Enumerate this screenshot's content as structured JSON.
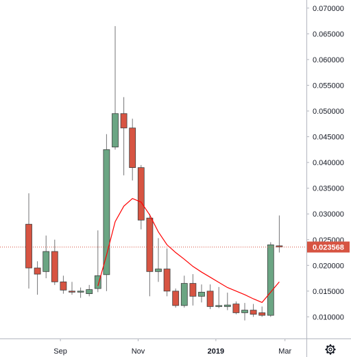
{
  "colors": {
    "up": "#6ba583",
    "down": "#d75442",
    "wick": "#737375",
    "ma_line": "#ff0000",
    "price_line": "#d75442",
    "axis": "#b2b5be",
    "price_label_bg": "#d75442"
  },
  "icons": {
    "settings": "gear-icon"
  },
  "chart_data": {
    "type": "candlestick",
    "title": "",
    "xlabel": "",
    "ylabel": "",
    "ylim": [
      0.0025,
      0.0725
    ],
    "y_ticks": [
      "0.010000",
      "0.015000",
      "0.020000",
      "0.025000",
      "0.030000",
      "0.035000",
      "0.040000",
      "0.045000",
      "0.050000",
      "0.055000",
      "0.060000",
      "0.065000",
      "0.070000"
    ],
    "x_ticks": [
      {
        "label": "Sep",
        "week": 4,
        "bold": false
      },
      {
        "label": "Nov",
        "week": 13,
        "bold": false
      },
      {
        "label": "2019",
        "week": 22,
        "bold": true
      },
      {
        "label": "Mar",
        "week": 30,
        "bold": false
      }
    ],
    "last_price": "0.023568",
    "last_price_value": 0.023568,
    "candles": [
      {
        "week": 0,
        "open": 0.028,
        "high": 0.034,
        "low": 0.0155,
        "close": 0.0195
      },
      {
        "week": 1,
        "open": 0.0195,
        "high": 0.0208,
        "low": 0.0143,
        "close": 0.0183
      },
      {
        "week": 2,
        "open": 0.0188,
        "high": 0.0258,
        "low": 0.0175,
        "close": 0.0227
      },
      {
        "week": 3,
        "open": 0.0227,
        "high": 0.025,
        "low": 0.0162,
        "close": 0.0168
      },
      {
        "week": 4,
        "open": 0.0168,
        "high": 0.018,
        "low": 0.0145,
        "close": 0.0152
      },
      {
        "week": 5,
        "open": 0.015,
        "high": 0.0168,
        "low": 0.0143,
        "close": 0.0148
      },
      {
        "week": 6,
        "open": 0.0148,
        "high": 0.0157,
        "low": 0.0137,
        "close": 0.015
      },
      {
        "week": 7,
        "open": 0.0145,
        "high": 0.0162,
        "low": 0.014,
        "close": 0.0153
      },
      {
        "week": 8,
        "open": 0.0155,
        "high": 0.0268,
        "low": 0.0148,
        "close": 0.018
      },
      {
        "week": 9,
        "open": 0.0182,
        "high": 0.0455,
        "low": 0.015,
        "close": 0.0425
      },
      {
        "week": 10,
        "open": 0.043,
        "high": 0.0665,
        "low": 0.0425,
        "close": 0.0495
      },
      {
        "week": 11,
        "open": 0.0495,
        "high": 0.0527,
        "low": 0.0375,
        "close": 0.0467
      },
      {
        "week": 12,
        "open": 0.0467,
        "high": 0.0485,
        "low": 0.0365,
        "close": 0.039
      },
      {
        "week": 13,
        "open": 0.039,
        "high": 0.0395,
        "low": 0.027,
        "close": 0.0288
      },
      {
        "week": 14,
        "open": 0.0292,
        "high": 0.03,
        "low": 0.014,
        "close": 0.0188
      },
      {
        "week": 15,
        "open": 0.0188,
        "high": 0.0253,
        "low": 0.0168,
        "close": 0.0193
      },
      {
        "week": 16,
        "open": 0.0193,
        "high": 0.0233,
        "low": 0.014,
        "close": 0.015
      },
      {
        "week": 17,
        "open": 0.015,
        "high": 0.0155,
        "low": 0.0118,
        "close": 0.0122
      },
      {
        "week": 18,
        "open": 0.0122,
        "high": 0.018,
        "low": 0.0118,
        "close": 0.0165
      },
      {
        "week": 19,
        "open": 0.0165,
        "high": 0.0183,
        "low": 0.0122,
        "close": 0.014
      },
      {
        "week": 20,
        "open": 0.014,
        "high": 0.0163,
        "low": 0.0128,
        "close": 0.0148
      },
      {
        "week": 21,
        "open": 0.015,
        "high": 0.0163,
        "low": 0.0115,
        "close": 0.012
      },
      {
        "week": 22,
        "open": 0.012,
        "high": 0.0158,
        "low": 0.0117,
        "close": 0.0122
      },
      {
        "week": 23,
        "open": 0.012,
        "high": 0.0147,
        "low": 0.0113,
        "close": 0.0123
      },
      {
        "week": 24,
        "open": 0.0125,
        "high": 0.013,
        "low": 0.0105,
        "close": 0.0108
      },
      {
        "week": 25,
        "open": 0.0108,
        "high": 0.0127,
        "low": 0.0093,
        "close": 0.0113
      },
      {
        "week": 26,
        "open": 0.0113,
        "high": 0.0125,
        "low": 0.01,
        "close": 0.0105
      },
      {
        "week": 27,
        "open": 0.0108,
        "high": 0.012,
        "low": 0.01,
        "close": 0.0103
      },
      {
        "week": 28,
        "open": 0.0103,
        "high": 0.0245,
        "low": 0.01,
        "close": 0.024
      },
      {
        "week": 29,
        "open": 0.0238,
        "high": 0.0297,
        "low": 0.0225,
        "close": 0.0236
      }
    ],
    "ma_series": [
      {
        "week": 8,
        "value": 0.016
      },
      {
        "week": 9,
        "value": 0.022
      },
      {
        "week": 10,
        "value": 0.0285
      },
      {
        "week": 11,
        "value": 0.0315
      },
      {
        "week": 12,
        "value": 0.033
      },
      {
        "week": 13,
        "value": 0.0323
      },
      {
        "week": 14,
        "value": 0.0298
      },
      {
        "week": 15,
        "value": 0.0265
      },
      {
        "week": 16,
        "value": 0.024
      },
      {
        "week": 17,
        "value": 0.0225
      },
      {
        "week": 18,
        "value": 0.0212
      },
      {
        "week": 19,
        "value": 0.0198
      },
      {
        "week": 20,
        "value": 0.0187
      },
      {
        "week": 21,
        "value": 0.0177
      },
      {
        "week": 22,
        "value": 0.0167
      },
      {
        "week": 23,
        "value": 0.0157
      },
      {
        "week": 24,
        "value": 0.015
      },
      {
        "week": 25,
        "value": 0.0143
      },
      {
        "week": 26,
        "value": 0.0135
      },
      {
        "week": 27,
        "value": 0.0128
      },
      {
        "week": 28,
        "value": 0.0148
      },
      {
        "week": 29,
        "value": 0.0168
      }
    ]
  }
}
